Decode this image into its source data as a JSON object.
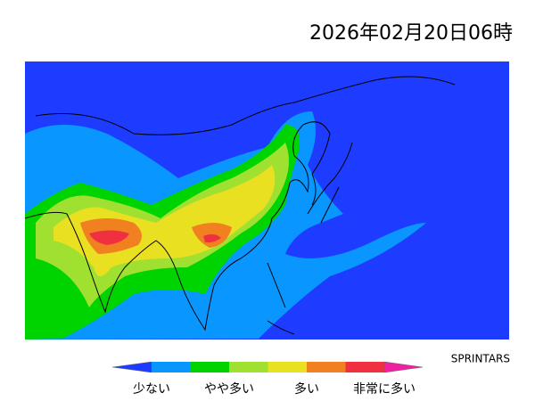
{
  "header": {
    "title": "2026年02月20日06時",
    "credit": "SPRINTARS"
  },
  "legend": {
    "labels": [
      "少ない",
      "やや多い",
      "多い",
      "非常に多い"
    ]
  }
}
